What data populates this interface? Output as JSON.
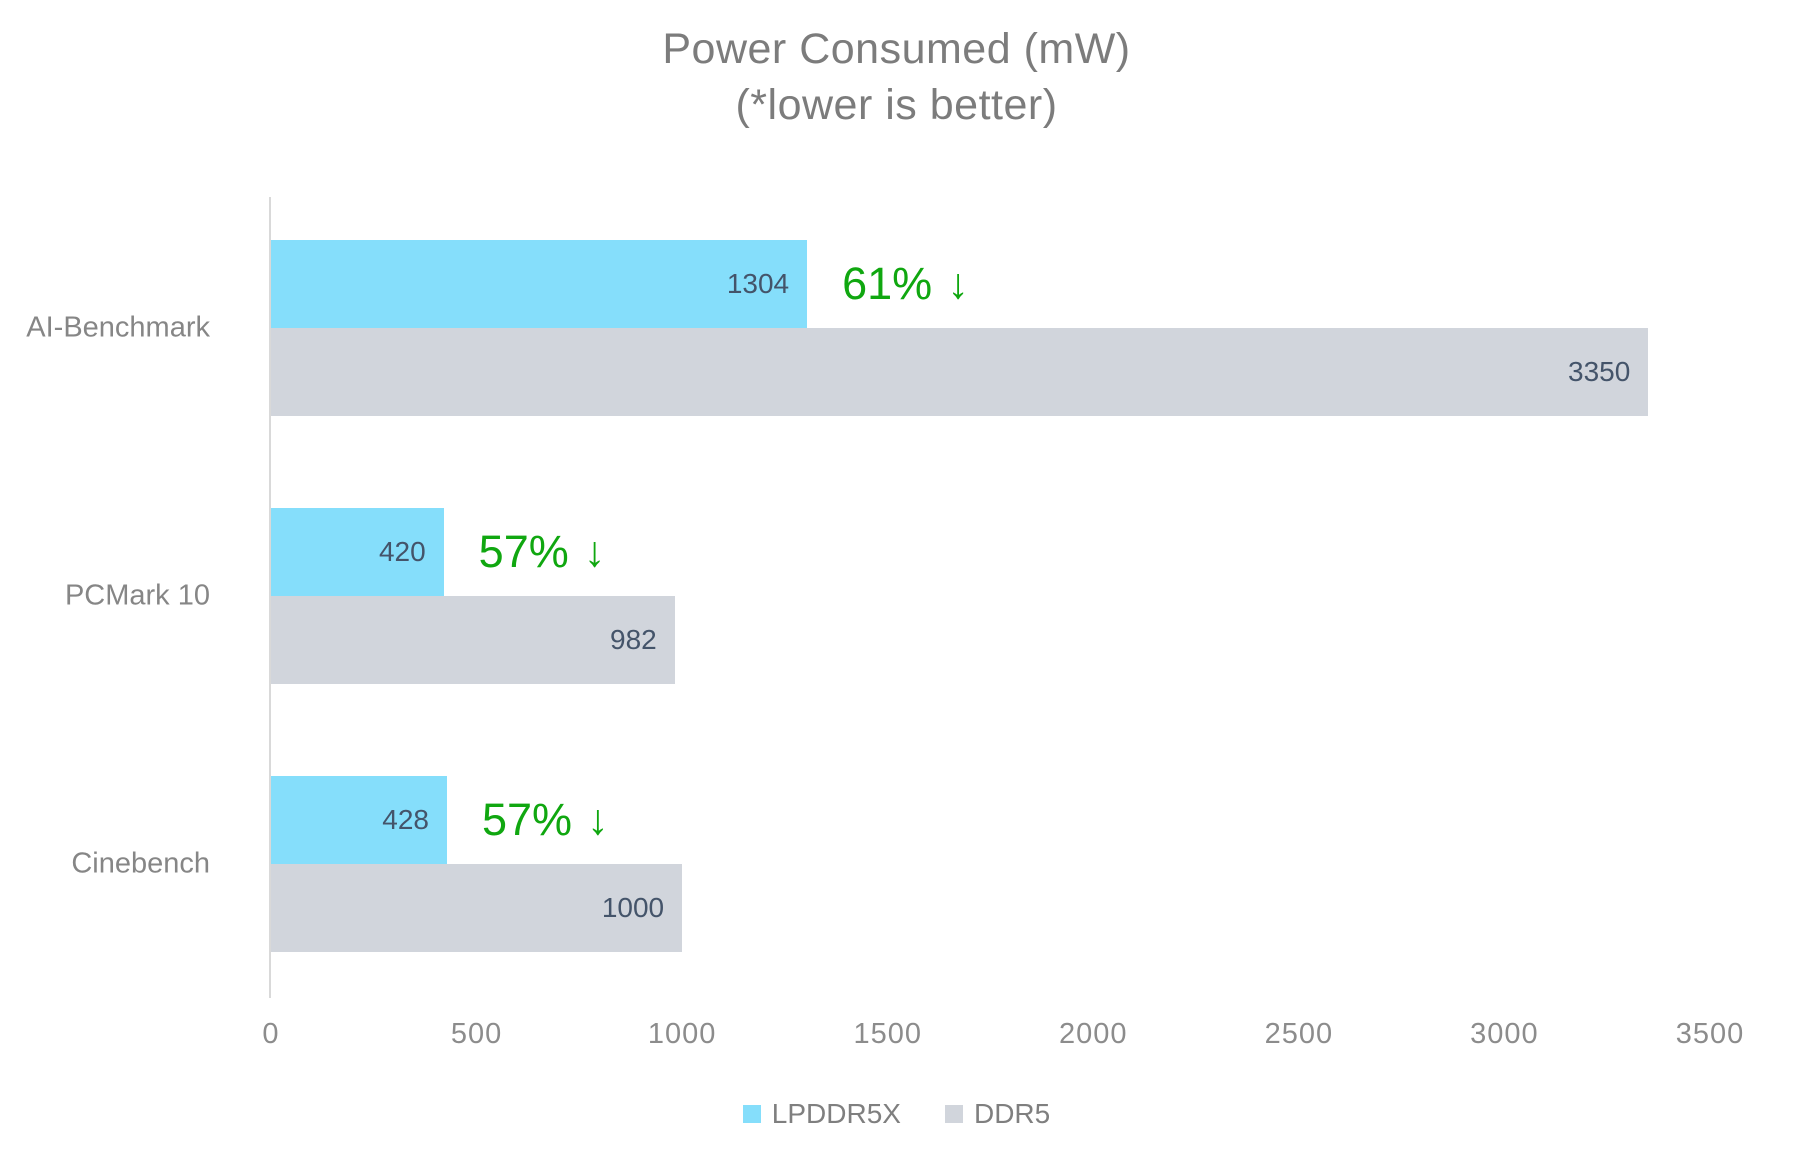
{
  "chart_data": {
    "type": "bar",
    "orientation": "horizontal",
    "title_line1": "Power Consumed (mW)",
    "title_line2": "(*lower is better)",
    "categories": [
      "AI-Benchmark",
      "PCMark 10",
      "Cinebench"
    ],
    "series": [
      {
        "name": "LPDDR5X",
        "color": "#85defb",
        "values": [
          1304,
          420,
          428
        ]
      },
      {
        "name": "DDR5",
        "color": "#d1d5dc",
        "values": [
          3350,
          982,
          1000
        ]
      }
    ],
    "annotations": [
      {
        "text": "61%",
        "arrow": "↓"
      },
      {
        "text": "57%",
        "arrow": "↓"
      },
      {
        "text": "57%",
        "arrow": "↓"
      }
    ],
    "x_ticks": [
      "0",
      "500",
      "1000",
      "1500",
      "2000",
      "2500",
      "3000",
      "3500"
    ],
    "xlim": [
      0,
      3500
    ],
    "grid": false,
    "legend": [
      "LPDDR5X",
      "DDR5"
    ],
    "legend_position": "bottom",
    "colors": {
      "bar_cyan": "#85defb",
      "bar_gray": "#d1d5dc",
      "annotation_green": "#10a710",
      "value_label": "#44546a",
      "axis_text": "#8c8c8c",
      "title_text": "#7c7c7c"
    }
  }
}
